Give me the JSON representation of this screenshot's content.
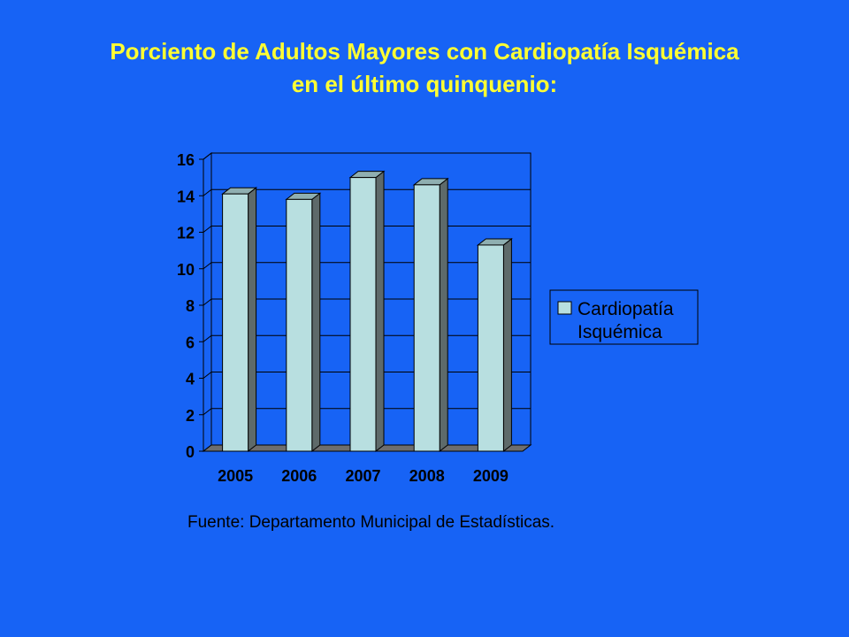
{
  "slide": {
    "background": "#1763F5",
    "title_line1": "Porciento de Adultos Mayores con Cardiopatía Isquémica",
    "title_line2": "en el último quinquenio:",
    "title_color": "#FFFF33",
    "source": "Fuente: Departamento Municipal de Estadísticas."
  },
  "chart_data": {
    "type": "bar",
    "style": "3d-column",
    "categories": [
      "2005",
      "2006",
      "2007",
      "2008",
      "2009"
    ],
    "series": [
      {
        "name": "Cardiopatía Isquémica",
        "values": [
          14.1,
          13.8,
          15.0,
          14.6,
          11.3
        ],
        "color": "#B8DFE0"
      }
    ],
    "legend_lines": [
      "Cardiopatía",
      "Isquémica"
    ],
    "ylim": [
      0,
      16
    ],
    "yticks": [
      "0",
      "2",
      "4",
      "6",
      "8",
      "10",
      "12",
      "14",
      "16"
    ],
    "grid": true,
    "legend_position": "right"
  }
}
